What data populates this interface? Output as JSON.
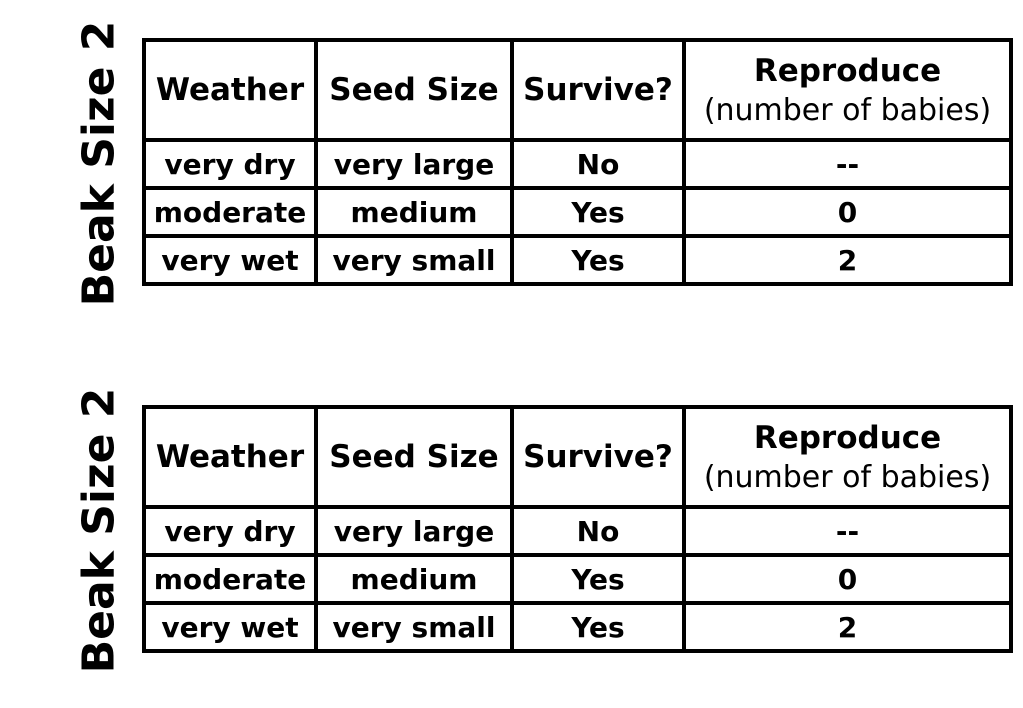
{
  "tables": [
    {
      "side_label": "Beak Size 2",
      "headers": {
        "weather": "Weather",
        "seed_size": "Seed Size",
        "survive": "Survive?",
        "reproduce": "Reproduce",
        "reproduce_sub": "(number of babies)"
      },
      "rows": [
        {
          "weather": "very dry",
          "seed_size": "very large",
          "survive": "No",
          "reproduce": "--"
        },
        {
          "weather": "moderate",
          "seed_size": "medium",
          "survive": "Yes",
          "reproduce": "0"
        },
        {
          "weather": "very wet",
          "seed_size": "very small",
          "survive": "Yes",
          "reproduce": "2"
        }
      ]
    },
    {
      "side_label": "Beak Size 2",
      "headers": {
        "weather": "Weather",
        "seed_size": "Seed Size",
        "survive": "Survive?",
        "reproduce": "Reproduce",
        "reproduce_sub": "(number of babies)"
      },
      "rows": [
        {
          "weather": "very dry",
          "seed_size": "very large",
          "survive": "No",
          "reproduce": "--"
        },
        {
          "weather": "moderate",
          "seed_size": "medium",
          "survive": "Yes",
          "reproduce": "0"
        },
        {
          "weather": "very wet",
          "seed_size": "very small",
          "survive": "Yes",
          "reproduce": "2"
        }
      ]
    }
  ]
}
